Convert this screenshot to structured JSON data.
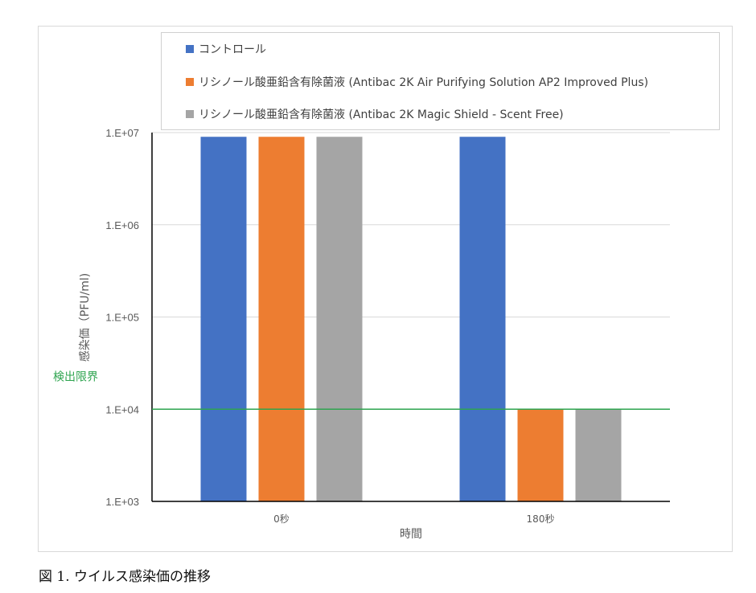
{
  "chart_data": {
    "type": "bar",
    "categories": [
      "0秒",
      "180秒"
    ],
    "series": [
      {
        "name": "コントロール",
        "color": "#4472c4",
        "values": [
          9000000,
          9000000
        ]
      },
      {
        "name": "リシノール酸亜鉛含有除菌液 (Antibac 2K Air Purifying Solution AP2 Improved Plus)",
        "color": "#ed7d31",
        "values": [
          9000000,
          10000
        ]
      },
      {
        "name": "リシノール酸亜鉛含有除菌液 (Antibac 2K Magic Shield - Scent Free)",
        "color": "#a5a5a5",
        "values": [
          9000000,
          10000
        ]
      }
    ],
    "xlabel": "時間",
    "ylabel": "感染価（PFU/ml)",
    "yscale": "log",
    "ylim": [
      1000,
      10000000
    ],
    "yticks": [
      "1.E+03",
      "1.E+04",
      "1.E+05",
      "1.E+06",
      "1.E+07"
    ],
    "grid": true,
    "legend_position": "top",
    "reference_line": {
      "label": "検出限界",
      "value": 10000,
      "color": "#2ea44f"
    }
  },
  "caption": "図 1.  ウイルス感染価の推移"
}
